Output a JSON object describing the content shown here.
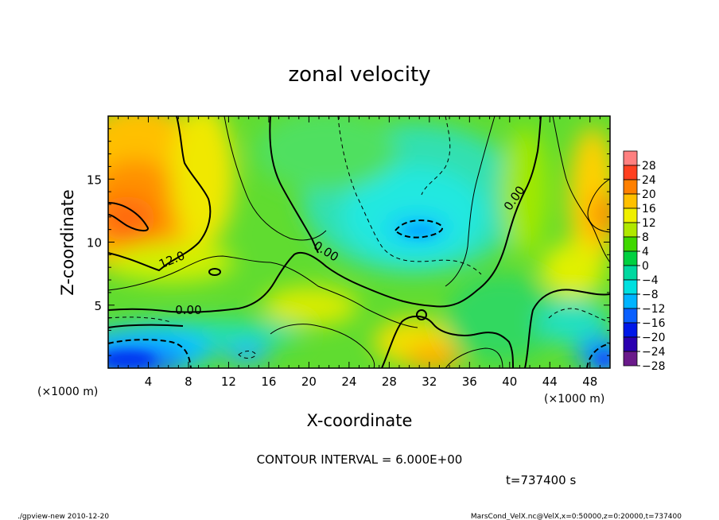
{
  "chart_data": {
    "type": "heatmap",
    "title": "zonal velocity",
    "xlabel": "X-coordinate",
    "ylabel": "Z-coordinate",
    "x_unit": "(×1000 m)",
    "y_unit": "(×1000 m)",
    "xlim": [
      0,
      50
    ],
    "ylim": [
      0,
      20
    ],
    "x_ticks": [
      4,
      8,
      12,
      16,
      20,
      24,
      28,
      32,
      36,
      40,
      44,
      48
    ],
    "y_ticks": [
      5,
      10,
      15
    ],
    "colorbar": {
      "levels": [
        -28,
        -24,
        -20,
        -16,
        -12,
        -8,
        -4,
        0,
        4,
        8,
        12,
        16,
        20,
        24,
        28
      ],
      "labels": [
        "28",
        "24",
        "20",
        "16",
        "12",
        "8",
        "4",
        "0",
        "−4",
        "−8",
        "−12",
        "−16",
        "−20",
        "−24",
        "−28"
      ],
      "colors": [
        "#6a1a8a",
        "#2a00b0",
        "#0018e8",
        "#0a60ff",
        "#00b4ff",
        "#00e0e0",
        "#00d8a0",
        "#00d040",
        "#40d800",
        "#b0e800",
        "#f0f000",
        "#ffc000",
        "#ff8000",
        "#ff4020",
        "#ff8080"
      ]
    },
    "contour_labels": [
      {
        "text": "12.0",
        "x": 6.5,
        "y": 8.3
      },
      {
        "text": "0.00",
        "x": 8.0,
        "y": 4.3
      },
      {
        "text": "0.00",
        "x": 21.5,
        "y": 9.0
      },
      {
        "text": "0.00",
        "x": 40.8,
        "y": 13.3
      }
    ],
    "annotations": {
      "contour_interval": "CONTOUR INTERVAL = 6.000E+00",
      "time": "t=737400 s",
      "footer_left": "./gpview-new   2010-12-20",
      "footer_right": "MarsCond_VelX.nc@VelX,x=0:50000,z=0:20000,t=737400"
    }
  }
}
